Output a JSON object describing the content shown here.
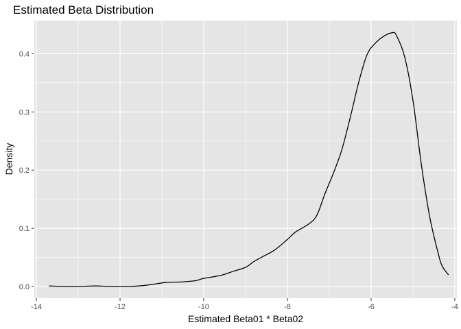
{
  "chart_data": {
    "type": "line",
    "title": "Estimated Beta Distribution",
    "xlabel": "Estimated Beta01 * Beta02",
    "ylabel": "Density",
    "xlim": [
      -14.05,
      -3.95
    ],
    "ylim": [
      -0.02,
      0.457
    ],
    "x_ticks": [
      -14,
      -12,
      -10,
      -8,
      -6,
      -4
    ],
    "x_tick_labels": [
      "-14",
      "-12",
      "-10",
      "-8",
      "-6",
      "-4"
    ],
    "y_ticks": [
      0.0,
      0.1,
      0.2,
      0.3,
      0.4
    ],
    "y_tick_labels": [
      "0.0",
      "0.1",
      "0.2",
      "0.3",
      "0.4"
    ],
    "grid": true,
    "legend": "none",
    "colors": {
      "panel": "#e5e5e5",
      "grid": "#ffffff",
      "line": "#000000",
      "tick": "#333333"
    },
    "series": [
      {
        "x": [
          -13.7,
          -13.3,
          -13.0,
          -12.6,
          -12.2,
          -11.8,
          -11.4,
          -11.1,
          -10.9,
          -10.5,
          -10.2,
          -10.0,
          -9.6,
          -9.3,
          -9.0,
          -8.8,
          -8.6,
          -8.3,
          -8.0,
          -7.8,
          -7.5,
          -7.3,
          -7.1,
          -6.9,
          -6.7,
          -6.5,
          -6.3,
          -6.1,
          -5.9,
          -5.7,
          -5.5,
          -5.4,
          -5.2,
          -5.0,
          -4.8,
          -4.6,
          -4.4,
          -4.3,
          -4.15
        ],
        "y": [
          0.001,
          0.0,
          0.0,
          0.001,
          0.0,
          0.0,
          0.002,
          0.005,
          0.007,
          0.008,
          0.01,
          0.014,
          0.019,
          0.026,
          0.033,
          0.043,
          0.051,
          0.063,
          0.081,
          0.094,
          0.107,
          0.122,
          0.16,
          0.195,
          0.235,
          0.29,
          0.35,
          0.398,
          0.418,
          0.43,
          0.436,
          0.432,
          0.395,
          0.32,
          0.21,
          0.12,
          0.058,
          0.035,
          0.02
        ]
      }
    ]
  }
}
